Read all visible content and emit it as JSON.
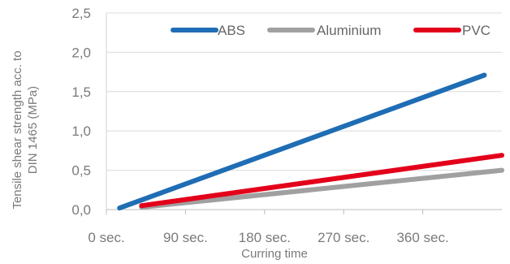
{
  "chart_data": {
    "type": "line",
    "x_tick_labels": [
      "0 sec.",
      "90 sec.",
      "180 sec.",
      "270 sec.",
      "360 sec."
    ],
    "x_ticks": [
      0,
      90,
      180,
      270,
      360
    ],
    "xlim": [
      0,
      450
    ],
    "y_tick_labels": [
      "0,0",
      "0,5",
      "1,0",
      "1,5",
      "2,0",
      "2,5"
    ],
    "y_ticks": [
      0,
      0.5,
      1.0,
      1.5,
      2.0,
      2.5
    ],
    "ylim": [
      0,
      2.5
    ],
    "xlabel": "Curring time",
    "ylabel": [
      "Tensile shear strength acc. to",
      "DIN 1465 (MPa)"
    ],
    "grid": "horizontal",
    "legend_position": "top",
    "series": [
      {
        "name": "ABS",
        "color": "#1f6db4",
        "x": [
          15,
          430
        ],
        "y": [
          0.02,
          1.71
        ]
      },
      {
        "name": "Aluminium",
        "color": "#a0a0a0",
        "x": [
          40,
          450
        ],
        "y": [
          0.03,
          0.5
        ]
      },
      {
        "name": "PVC",
        "color": "#e3001b",
        "x": [
          40,
          450
        ],
        "y": [
          0.05,
          0.69
        ]
      }
    ]
  }
}
